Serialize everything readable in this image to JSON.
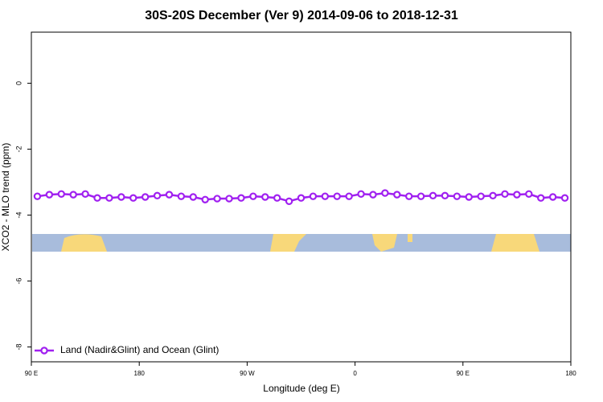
{
  "chart_data": {
    "type": "line",
    "title": "30S-20S December (Ver 9)   2014-09-06 to 2018-12-31",
    "x_label": "Longitude (deg E)",
    "y_label": "XCO2 - MLO trend (ppm)",
    "x": [
      95,
      105,
      115,
      125,
      135,
      145,
      155,
      165,
      175,
      185,
      195,
      205,
      215,
      225,
      235,
      245,
      255,
      265,
      275,
      285,
      295,
      305,
      315,
      325,
      335,
      345,
      355,
      365,
      375,
      385,
      395,
      405,
      415,
      425,
      435,
      445,
      455,
      465,
      475,
      485,
      495,
      505,
      515,
      525,
      535
    ],
    "series": [
      {
        "name": "Land (Nadir&Glint) and Ocean (Glint)",
        "color": "#a020f0",
        "values": [
          -3.43,
          -3.38,
          -3.36,
          -3.38,
          -3.36,
          -3.48,
          -3.48,
          -3.45,
          -3.48,
          -3.45,
          -3.41,
          -3.38,
          -3.43,
          -3.45,
          -3.53,
          -3.5,
          -3.5,
          -3.48,
          -3.43,
          -3.45,
          -3.48,
          -3.58,
          -3.48,
          -3.43,
          -3.43,
          -3.43,
          -3.43,
          -3.36,
          -3.38,
          -3.33,
          -3.38,
          -3.43,
          -3.43,
          -3.41,
          -3.41,
          -3.43,
          -3.45,
          -3.43,
          -3.41,
          -3.36,
          -3.38,
          -3.36,
          -3.48,
          -3.45,
          -3.48
        ]
      }
    ],
    "xlim": [
      90,
      540
    ],
    "xticks": [
      {
        "value": 90,
        "label": "90 E"
      },
      180,
      {
        "value": 270,
        "label": "90 W"
      },
      {
        "value": 360,
        "label": "0"
      },
      {
        "value": 450,
        "label": "90 E"
      },
      {
        "value": 540,
        "label": "180"
      }
    ],
    "ylim": [
      -8.45,
      1.55
    ],
    "yticks": [
      0,
      -2,
      -4,
      -6,
      -8
    ],
    "grid": false,
    "legend": "bottom-left"
  }
}
